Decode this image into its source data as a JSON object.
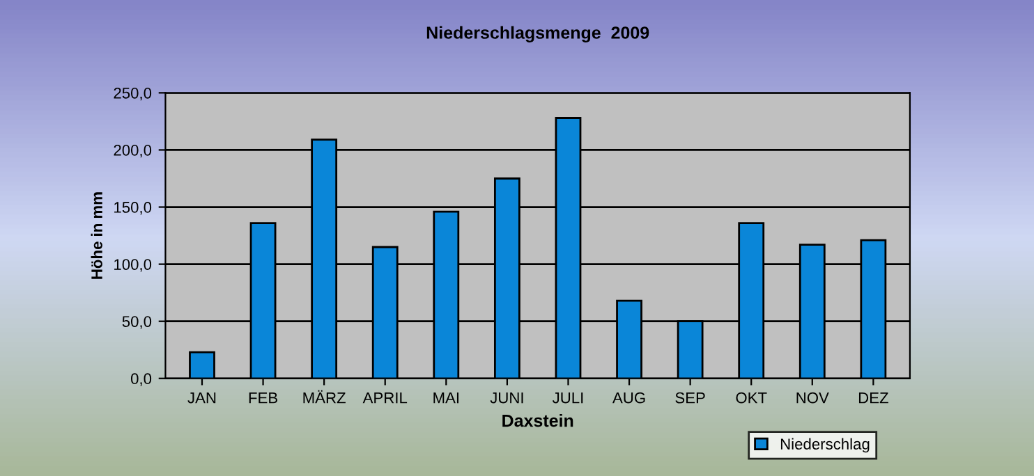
{
  "chart_data": {
    "type": "bar",
    "title": "Niederschlagsmenge  2009",
    "xlabel": "Daxstein",
    "ylabel": "Höhe in mm",
    "categories": [
      "JAN",
      "FEB",
      "MÄRZ",
      "APRIL",
      "MAI",
      "JUNI",
      "JULI",
      "AUG",
      "SEP",
      "OKT",
      "NOV",
      "DEZ"
    ],
    "series": [
      {
        "name": "Niederschlag",
        "color": "#0a86d8",
        "values": [
          23,
          136,
          209,
          115,
          146,
          175,
          228,
          68,
          50,
          136,
          117,
          121
        ]
      }
    ],
    "ylim": [
      0,
      250
    ],
    "yticks": [
      {
        "value": 0,
        "label": "0,0"
      },
      {
        "value": 50,
        "label": "50,0"
      },
      {
        "value": 100,
        "label": "100,0"
      },
      {
        "value": 150,
        "label": "150,0"
      },
      {
        "value": 200,
        "label": "200,0"
      },
      {
        "value": 250,
        "label": "250,0"
      }
    ],
    "grid": "y",
    "legend": "bottom right"
  }
}
